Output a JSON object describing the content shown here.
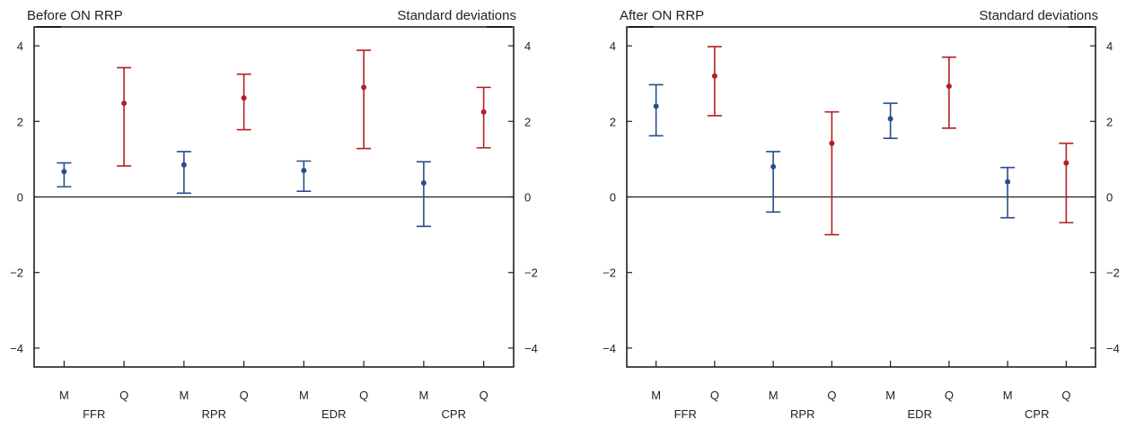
{
  "colors": {
    "M": "#2a4c8c",
    "Q": "#b22024",
    "axis": "#231f20"
  },
  "chart_data": [
    {
      "type": "errorbar",
      "title": "Before ON RRP",
      "units_label": "Standard deviations",
      "ylim": [
        -4.5,
        4.5
      ],
      "yticks": [
        "4",
        "2",
        "0",
        "−2",
        "−4"
      ],
      "ytick_values": [
        4,
        2,
        0,
        -2,
        -4
      ],
      "zero_line": true,
      "groups": [
        "FFR",
        "RPR",
        "EDR",
        "CPR"
      ],
      "categories": [
        "M",
        "Q",
        "M",
        "Q",
        "M",
        "Q",
        "M",
        "Q"
      ],
      "series": [
        {
          "name": "M",
          "points": [
            {
              "group": "FFR",
              "y": 0.67,
              "low": 0.27,
              "high": 0.9
            },
            {
              "group": "RPR",
              "y": 0.85,
              "low": 0.1,
              "high": 1.2
            },
            {
              "group": "EDR",
              "y": 0.7,
              "low": 0.15,
              "high": 0.95
            },
            {
              "group": "CPR",
              "y": 0.37,
              "low": -0.78,
              "high": 0.93
            }
          ]
        },
        {
          "name": "Q",
          "points": [
            {
              "group": "FFR",
              "y": 2.48,
              "low": 0.82,
              "high": 3.42
            },
            {
              "group": "RPR",
              "y": 2.62,
              "low": 1.78,
              "high": 3.25
            },
            {
              "group": "EDR",
              "y": 2.9,
              "low": 1.28,
              "high": 3.88
            },
            {
              "group": "CPR",
              "y": 2.25,
              "low": 1.3,
              "high": 2.9
            }
          ]
        }
      ]
    },
    {
      "type": "errorbar",
      "title": "After ON RRP",
      "units_label": "Standard deviations",
      "ylim": [
        -4.5,
        4.5
      ],
      "yticks": [
        "4",
        "2",
        "0",
        "−2",
        "−4"
      ],
      "ytick_values": [
        4,
        2,
        0,
        -2,
        -4
      ],
      "zero_line": true,
      "groups": [
        "FFR",
        "RPR",
        "EDR",
        "CPR"
      ],
      "categories": [
        "M",
        "Q",
        "M",
        "Q",
        "M",
        "Q",
        "M",
        "Q"
      ],
      "series": [
        {
          "name": "M",
          "points": [
            {
              "group": "FFR",
              "y": 2.4,
              "low": 1.62,
              "high": 2.97
            },
            {
              "group": "RPR",
              "y": 0.8,
              "low": -0.4,
              "high": 1.2
            },
            {
              "group": "EDR",
              "y": 2.07,
              "low": 1.55,
              "high": 2.48
            },
            {
              "group": "CPR",
              "y": 0.4,
              "low": -0.55,
              "high": 0.78
            }
          ]
        },
        {
          "name": "Q",
          "points": [
            {
              "group": "FFR",
              "y": 3.2,
              "low": 2.15,
              "high": 3.98
            },
            {
              "group": "RPR",
              "y": 1.42,
              "low": -1.0,
              "high": 2.25
            },
            {
              "group": "EDR",
              "y": 2.93,
              "low": 1.82,
              "high": 3.7
            },
            {
              "group": "CPR",
              "y": 0.9,
              "low": -0.68,
              "high": 1.42
            }
          ]
        }
      ]
    }
  ]
}
